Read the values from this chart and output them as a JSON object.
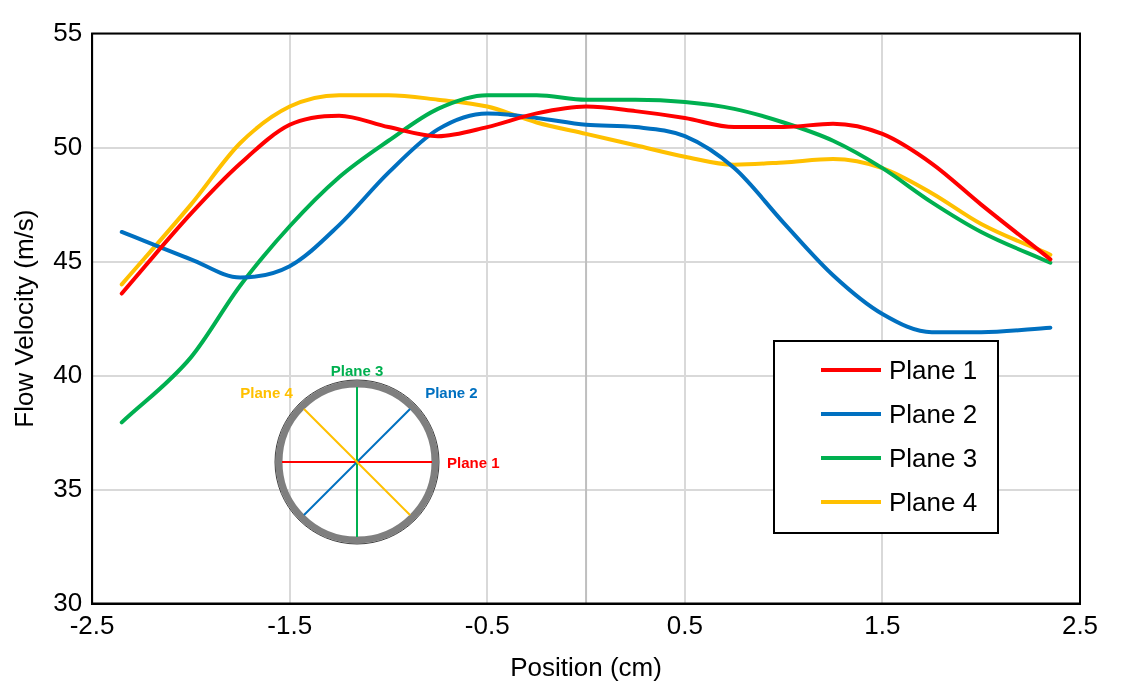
{
  "chart_data": {
    "type": "line",
    "xlabel": "Position (cm)",
    "ylabel": "Flow Velocity (m/s)",
    "x": [
      -2.35,
      -2.0,
      -1.75,
      -1.5,
      -1.25,
      -1.0,
      -0.75,
      -0.5,
      -0.25,
      0,
      0.25,
      0.5,
      0.75,
      1.0,
      1.25,
      1.5,
      1.75,
      2.0,
      2.35
    ],
    "series": [
      {
        "name": "Plane 1",
        "color": "#ff0000",
        "values": [
          43.6,
          47.1,
          49.3,
          51.0,
          51.4,
          50.9,
          50.5,
          50.9,
          51.5,
          51.8,
          51.6,
          51.3,
          50.9,
          50.9,
          51.05,
          50.6,
          49.3,
          47.5,
          45.1
        ]
      },
      {
        "name": "Plane 2",
        "color": "#0070c0",
        "values": [
          46.3,
          45.1,
          44.3,
          44.8,
          46.6,
          48.9,
          50.8,
          51.5,
          51.3,
          51.0,
          50.9,
          50.5,
          49.1,
          46.7,
          44.4,
          42.7,
          41.9,
          41.9,
          42.1
        ]
      },
      {
        "name": "Plane 3",
        "color": "#00b050",
        "values": [
          37.95,
          40.8,
          43.95,
          46.55,
          48.7,
          50.3,
          51.7,
          52.3,
          52.3,
          52.1,
          52.1,
          52.0,
          51.7,
          51.1,
          50.3,
          49.1,
          47.6,
          46.3,
          44.95
        ]
      },
      {
        "name": "Plane 4",
        "color": "#ffc000",
        "values": [
          44.0,
          47.5,
          50.2,
          51.8,
          52.3,
          52.3,
          52.1,
          51.8,
          51.1,
          50.6,
          50.1,
          49.6,
          49.25,
          49.35,
          49.5,
          49.1,
          48.0,
          46.65,
          45.3
        ]
      }
    ],
    "xlim": [
      -2.5,
      2.5
    ],
    "xticks": [
      -2.5,
      -1.5,
      -0.5,
      0.5,
      1.5,
      2.5
    ],
    "ylim": [
      30,
      55
    ],
    "yticks": [
      30,
      35,
      40,
      45,
      50,
      55
    ],
    "grid": true,
    "legend": "bottom right",
    "marker": "none",
    "line_style": "solid",
    "ref_lines": [
      {
        "axis": "x",
        "value": 0,
        "color": "#bfbfbf"
      }
    ],
    "annotations": [
      "Plane 1",
      "Plane 2",
      "Plane 3",
      "Plane 4"
    ]
  }
}
